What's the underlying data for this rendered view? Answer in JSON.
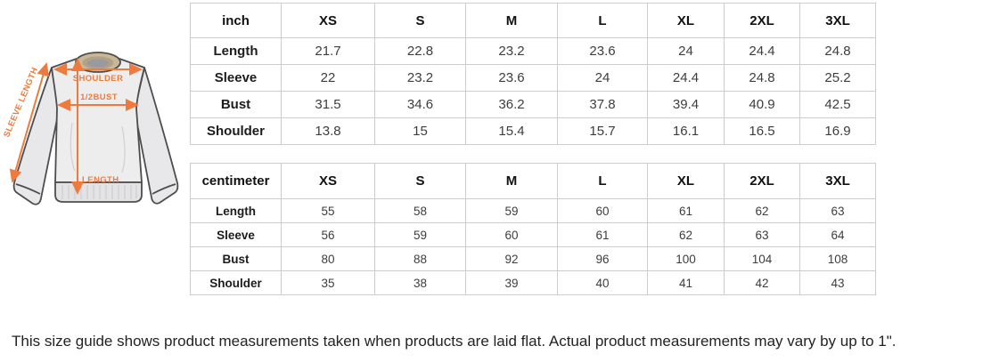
{
  "illustration": {
    "accent_color": "#ee7b3d",
    "labels": {
      "shoulder": "SHOULDER",
      "half_bust": "1/2BUST",
      "sleeve_length": "SLEEVE LENGTH",
      "length": "LENGTH"
    }
  },
  "tables": [
    {
      "unit": "inch",
      "sizes": [
        "XS",
        "S",
        "M",
        "L",
        "XL",
        "2XL",
        "3XL"
      ],
      "rows": [
        {
          "label": "Length",
          "values": [
            "21.7",
            "22.8",
            "23.2",
            "23.6",
            "24",
            "24.4",
            "24.8"
          ]
        },
        {
          "label": "Sleeve",
          "values": [
            "22",
            "23.2",
            "23.6",
            "24",
            "24.4",
            "24.8",
            "25.2"
          ]
        },
        {
          "label": "Bust",
          "values": [
            "31.5",
            "34.6",
            "36.2",
            "37.8",
            "39.4",
            "40.9",
            "42.5"
          ]
        },
        {
          "label": "Shoulder",
          "values": [
            "13.8",
            "15",
            "15.4",
            "15.7",
            "16.1",
            "16.5",
            "16.9"
          ]
        }
      ]
    },
    {
      "unit": "centimeter",
      "sizes": [
        "XS",
        "S",
        "M",
        "L",
        "XL",
        "2XL",
        "3XL"
      ],
      "rows": [
        {
          "label": "Length",
          "values": [
            "55",
            "58",
            "59",
            "60",
            "61",
            "62",
            "63"
          ]
        },
        {
          "label": "Sleeve",
          "values": [
            "56",
            "59",
            "60",
            "61",
            "62",
            "63",
            "64"
          ]
        },
        {
          "label": "Bust",
          "values": [
            "80",
            "88",
            "92",
            "96",
            "100",
            "104",
            "108"
          ]
        },
        {
          "label": "Shoulder",
          "values": [
            "35",
            "38",
            "39",
            "40",
            "41",
            "42",
            "43"
          ]
        }
      ]
    }
  ],
  "footnote": "This size guide shows product measurements taken when products are laid flat. Actual product measurements may vary by up to 1\"."
}
